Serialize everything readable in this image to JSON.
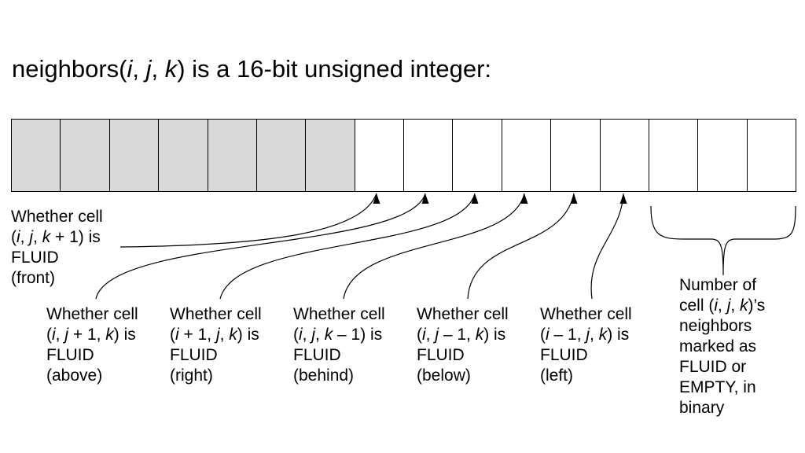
{
  "title": {
    "prefix": "neighbors(",
    "var_i": "i",
    "sep1": ", ",
    "var_j": "j",
    "sep2": ", ",
    "var_k": "k",
    "suffix": ") is a 16-bit unsigned integer:"
  },
  "register": {
    "bit_count": 16,
    "shaded_count": 7,
    "shaded_color": "#d9d9d9",
    "empty_color": "#ffffff"
  },
  "labels": {
    "front": {
      "line1": "Whether cell",
      "coord": {
        "open": "(",
        "i": "i",
        "c1": ", ",
        "j": "j",
        "c2": ", ",
        "k": "k",
        "close": " + 1) is"
      },
      "line3": "FLUID",
      "line4": "(front)"
    },
    "above": {
      "line1": "Whether cell",
      "coord": {
        "open": "(",
        "i": "i",
        "c1": ", ",
        "j": "j",
        "mid": " + 1, ",
        "k": "k",
        "close": ") is"
      },
      "line3": "FLUID",
      "line4": "(above)"
    },
    "right": {
      "line1": "Whether cell",
      "coord": {
        "open": "(",
        "i": "i",
        "mid": " + 1, ",
        "j": "j",
        "c2": ", ",
        "k": "k",
        "close": ") is"
      },
      "line3": "FLUID",
      "line4": "(right)"
    },
    "behind": {
      "line1": "Whether cell",
      "coord": {
        "open": "(",
        "i": "i",
        "c1": ", ",
        "j": "j",
        "c2": ", ",
        "k": "k",
        "close": " – 1) is"
      },
      "line3": "FLUID",
      "line4": "(behind)"
    },
    "below": {
      "line1": "Whether cell",
      "coord": {
        "open": "(",
        "i": "i",
        "c1": ", ",
        "j": "j",
        "mid": " – 1, ",
        "k": "k",
        "close": ") is"
      },
      "line3": "FLUID",
      "line4": "(below)"
    },
    "left": {
      "line1": "Whether cell",
      "coord": {
        "open": "(",
        "i": "i",
        "mid": " – 1, ",
        "j": "j",
        "c2": ", ",
        "k": "k",
        "close": ") is"
      },
      "line3": "FLUID",
      "line4": "(left)"
    },
    "count": {
      "line1": "Number of",
      "coord": {
        "open": "cell (",
        "i": "i",
        "c1": ", ",
        "j": "j",
        "c2": ", ",
        "k": "k",
        "close": ")’s"
      },
      "line3": "neighbors",
      "line4": "marked as",
      "line5": "FLUID or",
      "line6": "EMPTY, in",
      "line7": "binary"
    }
  }
}
